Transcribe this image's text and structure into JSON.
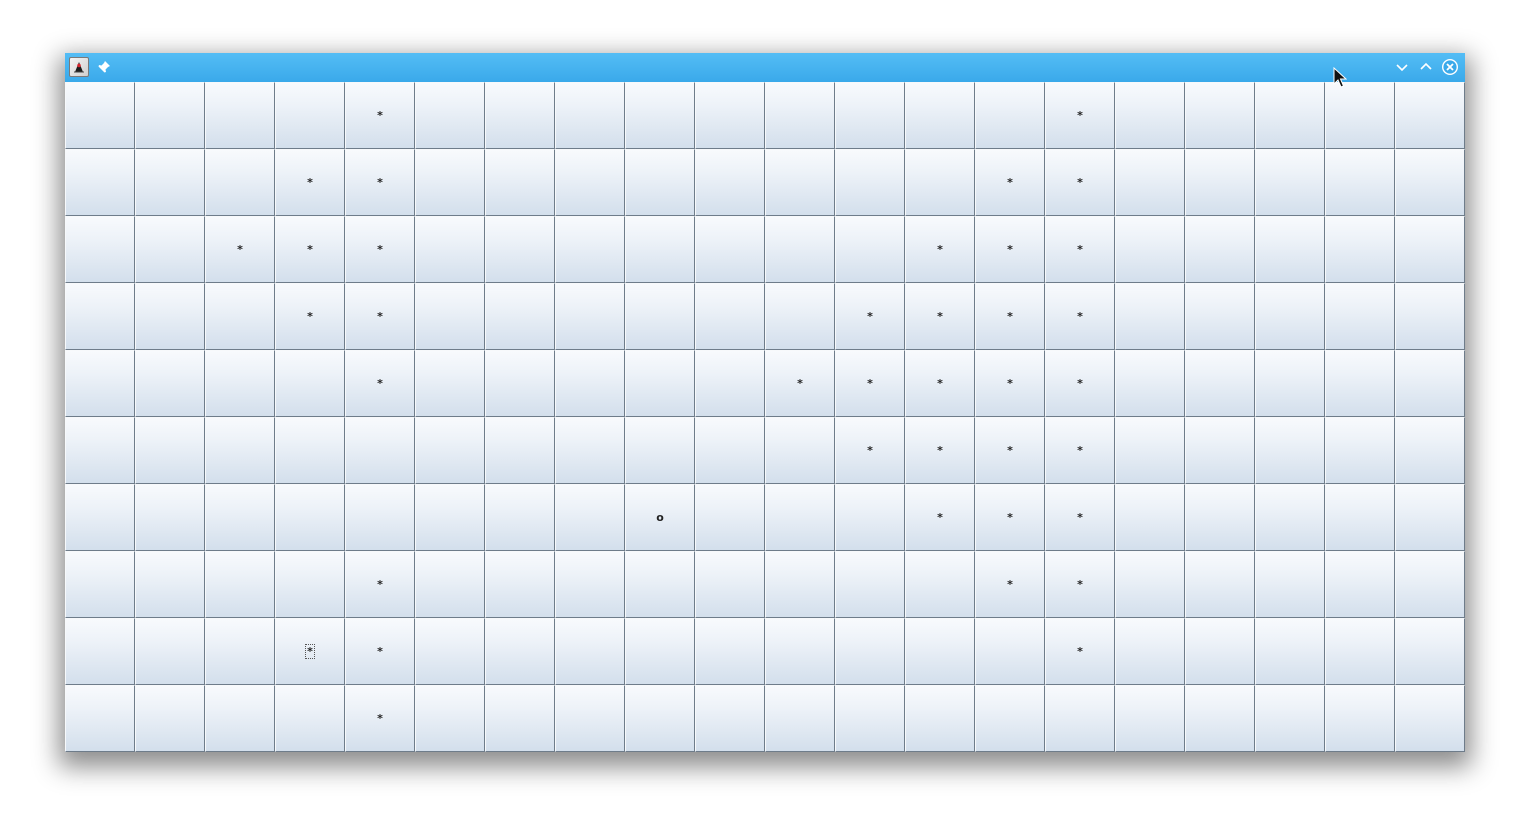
{
  "window": {
    "title": "",
    "icon": "java-duke-icon",
    "titlebar_color": "#45b3f0",
    "buttons": [
      "minimize",
      "maximize",
      "close"
    ]
  },
  "grid": {
    "columns": 20,
    "rows": 10,
    "focused_cell": {
      "row": 8,
      "col": 3
    },
    "cells": [
      [
        "",
        "",
        "",
        "",
        "*",
        "",
        "",
        "",
        "",
        "",
        "",
        "",
        "",
        "",
        "*",
        "",
        "",
        "",
        "",
        ""
      ],
      [
        "",
        "",
        "",
        "*",
        "*",
        "",
        "",
        "",
        "",
        "",
        "",
        "",
        "",
        "*",
        "*",
        "",
        "",
        "",
        "",
        ""
      ],
      [
        "",
        "",
        "*",
        "*",
        "*",
        "",
        "",
        "",
        "",
        "",
        "",
        "",
        "*",
        "*",
        "*",
        "",
        "",
        "",
        "",
        ""
      ],
      [
        "",
        "",
        "",
        "*",
        "*",
        "",
        "",
        "",
        "",
        "",
        "",
        "*",
        "*",
        "*",
        "*",
        "",
        "",
        "",
        "",
        ""
      ],
      [
        "",
        "",
        "",
        "",
        "*",
        "",
        "",
        "",
        "",
        "",
        "*",
        "*",
        "*",
        "*",
        "*",
        "",
        "",
        "",
        "",
        ""
      ],
      [
        "",
        "",
        "",
        "",
        "",
        "",
        "",
        "",
        "",
        "",
        "",
        "*",
        "*",
        "*",
        "*",
        "",
        "",
        "",
        "",
        ""
      ],
      [
        "",
        "",
        "",
        "",
        "",
        "",
        "",
        "",
        "o",
        "",
        "",
        "",
        "*",
        "*",
        "*",
        "",
        "",
        "",
        "",
        ""
      ],
      [
        "",
        "",
        "",
        "",
        "*",
        "",
        "",
        "",
        "",
        "",
        "",
        "",
        "",
        "*",
        "*",
        "",
        "",
        "",
        "",
        ""
      ],
      [
        "",
        "",
        "",
        "*",
        "*",
        "",
        "",
        "",
        "",
        "",
        "",
        "",
        "",
        "",
        "*",
        "",
        "",
        "",
        "",
        ""
      ],
      [
        "",
        "",
        "",
        "",
        "*",
        "",
        "",
        "",
        "",
        "",
        "",
        "",
        "",
        "",
        "",
        "",
        "",
        "",
        "",
        ""
      ]
    ]
  }
}
